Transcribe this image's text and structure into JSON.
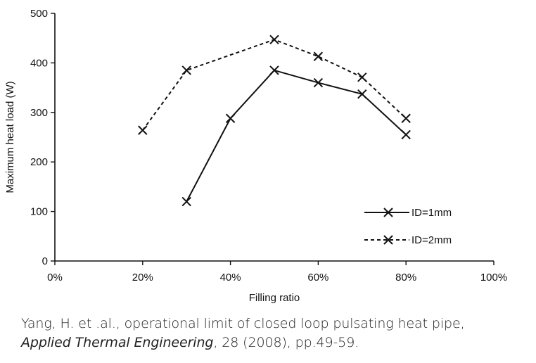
{
  "chart_data": {
    "type": "line",
    "xlabel": "Filling ratio",
    "ylabel": "Maximum heat load (W)",
    "xlim": [
      0,
      100
    ],
    "ylim": [
      0,
      500
    ],
    "x_ticks": [
      "0%",
      "20%",
      "40%",
      "60%",
      "80%",
      "100%"
    ],
    "y_ticks": [
      "0",
      "100",
      "200",
      "300",
      "400",
      "500"
    ],
    "grid": false,
    "legend_position": "bottom-right",
    "series": [
      {
        "name": "ID=1mm",
        "style": "solid",
        "marker": "x",
        "x": [
          30,
          40,
          50,
          60,
          70,
          80
        ],
        "y": [
          120,
          288,
          385,
          360,
          337,
          255
        ]
      },
      {
        "name": "ID=2mm",
        "style": "dashed",
        "marker": "x",
        "x": [
          20,
          30,
          50,
          60,
          70,
          80
        ],
        "y": [
          264,
          385,
          447,
          413,
          371,
          288
        ]
      }
    ]
  },
  "caption": {
    "line1": "Yang, H. et .al., operational limit of closed loop pulsating heat pipe,",
    "journal": "Applied Thermal Engineering",
    "rest": ", 28 (2008), pp.49-59."
  },
  "colors": {
    "line": "#111111",
    "text": "#222222"
  }
}
